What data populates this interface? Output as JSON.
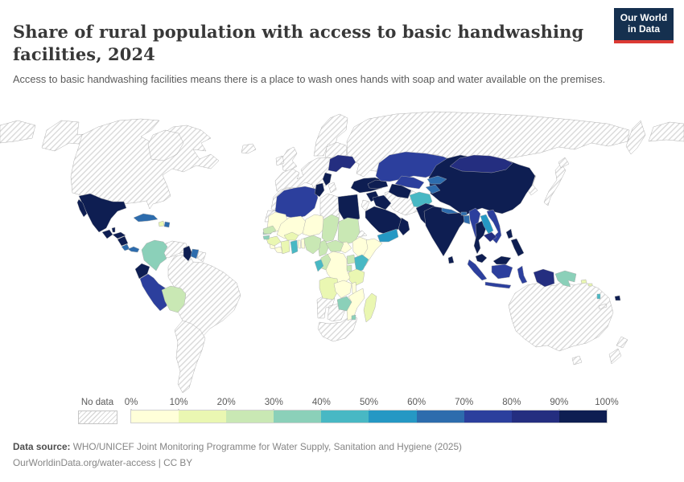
{
  "header": {
    "title": "Share of rural population with access to basic handwashing facilities, 2024",
    "subtitle": "Access to basic handwashing facilities means there is a place to wash ones hands with soap and water available on the premises."
  },
  "logo": {
    "line1": "Our World",
    "line2": "in Data",
    "bg_color": "#15304f",
    "bar_color": "#dc3a34"
  },
  "legend": {
    "no_data_label": "No data",
    "tick_labels": [
      "0%",
      "10%",
      "20%",
      "30%",
      "40%",
      "50%",
      "60%",
      "70%",
      "80%",
      "90%",
      "100%"
    ],
    "palette": [
      "#ffffd9",
      "#eaf7b2",
      "#c9e8b4",
      "#8bd0b9",
      "#48b8c4",
      "#2598c4",
      "#2d6cad",
      "#2c3f9d",
      "#242e80",
      "#0e1e52"
    ],
    "hatch_line_color": "#d9d9d9"
  },
  "footer": {
    "source_label": "Data source:",
    "source_text": "WHO/UNICEF Joint Monitoring Programme for Water Supply, Sanitation and Hygiene (2025)",
    "url_text": "OurWorldinData.org/water-access",
    "separator": "|",
    "license": "CC BY"
  },
  "chart_data": {
    "type": "choropleth",
    "title": "Share of rural population with access to basic handwashing facilities, 2024",
    "unit": "% of rural population",
    "bin_ranges": [
      "0-10%",
      "10-20%",
      "20-30%",
      "30-40%",
      "40-50%",
      "50-60%",
      "60-70%",
      "70-80%",
      "80-90%",
      "90-100%"
    ],
    "no_data_label": "No data",
    "values": {
      "canada-usa": "no-data",
      "alaska": "no-data",
      "greenland": "no-data",
      "iceland": "no-data",
      "mexico": 9,
      "guatemala": 9,
      "belize": 9,
      "honduras": 9,
      "nicaragua": 9,
      "costa-rica": 6,
      "panama": 6,
      "cuba": 6,
      "haiti": 1,
      "dominican-republic": 6,
      "colombia": 3,
      "venezuela": "no-data",
      "guyana": 9,
      "suriname": 6,
      "french-guiana": "no-data",
      "ecuador": 9,
      "peru": 7,
      "bolivia": 2,
      "brazil": "no-data",
      "southern-south-america": "no-data",
      "british-isles": "no-data",
      "scandinavia": "no-data",
      "western-europe": "no-data",
      "eastern-europe": "no-data",
      "balkans": 9,
      "ukraine": 8,
      "russia": "no-data",
      "morocco": "no-data",
      "western-sahara": "no-data",
      "algeria": 7,
      "tunisia": 9,
      "libya": "no-data",
      "egypt": 9,
      "mauritania": 0,
      "mali": 0,
      "niger": 0,
      "chad": 2,
      "sudan": 2,
      "south-sudan": 0,
      "eritrea": "no-data",
      "ethiopia": 0,
      "somalia": 0,
      "kenya": 4,
      "uganda": 2,
      "rwanda-burundi": 2,
      "tanzania": 1,
      "democratic-republic-of-congo": 0,
      "congo": 2,
      "gabon": 4,
      "cameroon": 2,
      "central-african-republic": 2,
      "nigeria": 2,
      "benin": 0,
      "togo": 0,
      "ghana": 4,
      "cote-divoire": 1,
      "liberia": 0,
      "sierra-leone": 0,
      "guinea": 1,
      "guinea-bissau": 3,
      "gambia": 3,
      "senegal": 2,
      "burkina-faso": 1,
      "angola": 1,
      "zambia": 0,
      "malawi": 0,
      "mozambique": 0,
      "zimbabwe": 3,
      "eswatini": 3,
      "madagascar": 1,
      "namibia": "no-data",
      "botswana": "no-data",
      "south-africa": "no-data",
      "turkey": 9,
      "syria": 9,
      "levant": "no-data",
      "iraq": 9,
      "iran": "no-data",
      "saudi-arabia": 9,
      "yemen": 5,
      "oman": 9,
      "gulf-states": "no-data",
      "caucasus": 9,
      "kazakhstan": 7,
      "uzbekistan": 7,
      "turkmenistan": 9,
      "kyrgyzstan": 6,
      "tajikistan": 6,
      "afghanistan": 4,
      "pakistan": 9,
      "india": 9,
      "nepal": 6,
      "bhutan": 6,
      "bangladesh": 6,
      "sri-lanka": 9,
      "myanmar": 7,
      "thailand": 9,
      "laos": 5,
      "vietnam": 7,
      "cambodia": 8,
      "malaysia": 9,
      "indonesia": 7,
      "west-papua": 8,
      "philippines": 9,
      "china": 9,
      "mongolia": 8,
      "korea": "no-data",
      "japan": "no-data",
      "australia": "no-data",
      "new-zealand": "no-data",
      "new-caledonia": "no-data",
      "papua-new-guinea": 3,
      "solomon-islands": 1,
      "vanuatu": 4,
      "fiji": 9
    }
  }
}
